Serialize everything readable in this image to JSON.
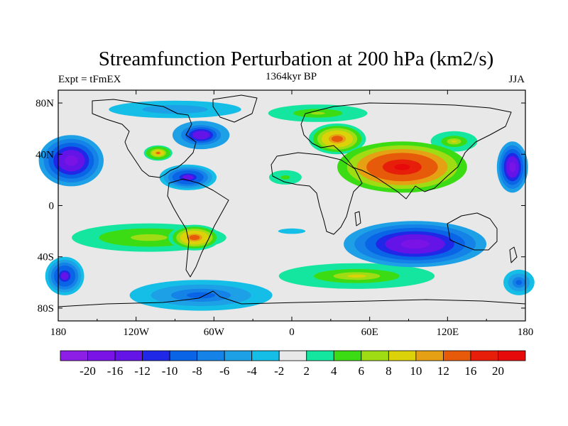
{
  "chart_data": {
    "type": "heatmap",
    "title": "Streamfunction Perturbation at 200 hPa (km2/s)",
    "left_string": "Expt = tFmEX",
    "center_string": "1364kyr BP",
    "right_string": "JJA",
    "xlabel": "",
    "ylabel": "",
    "x_range": [
      -180,
      180
    ],
    "y_range": [
      -90,
      90
    ],
    "x_ticks": [
      {
        "value": -180,
        "label": "180"
      },
      {
        "value": -120,
        "label": "120W"
      },
      {
        "value": -60,
        "label": "60W"
      },
      {
        "value": 0,
        "label": "0"
      },
      {
        "value": 60,
        "label": "60E"
      },
      {
        "value": 120,
        "label": "120E"
      },
      {
        "value": 180,
        "label": "180"
      }
    ],
    "y_ticks": [
      {
        "value": 80,
        "label": "80N"
      },
      {
        "value": 40,
        "label": "40N"
      },
      {
        "value": 0,
        "label": "0"
      },
      {
        "value": -40,
        "label": "40S"
      },
      {
        "value": -80,
        "label": "80S"
      }
    ],
    "colorbar": {
      "levels": [
        -20,
        -16,
        -12,
        -10,
        -8,
        -6,
        -4,
        -2,
        2,
        4,
        6,
        8,
        10,
        12,
        16,
        20
      ],
      "labels": [
        "-20",
        "-16",
        "-12",
        "-10",
        "-8",
        "-6",
        "-4",
        "-2",
        "2",
        "4",
        "6",
        "8",
        "10",
        "12",
        "16",
        "20"
      ],
      "colors": [
        "#8c1ee6",
        "#7a14e6",
        "#6414e6",
        "#1e28e6",
        "#0a64e6",
        "#1482e6",
        "#1ea0e6",
        "#14bee6",
        "#e8e8e8",
        "#14e6a0",
        "#3cdc14",
        "#a0dc14",
        "#dcd20a",
        "#e6a014",
        "#e65a0a",
        "#e61e0a",
        "#e60a0a"
      ]
    },
    "features": [
      {
        "name": "central-asia-high",
        "lon": 85,
        "lat": 30,
        "rx": 50,
        "ry": 20,
        "value": 22
      },
      {
        "name": "europe-high",
        "lon": 35,
        "lat": 52,
        "rx": 22,
        "ry": 12,
        "value": 14
      },
      {
        "name": "arctic-europe-positive",
        "lon": 20,
        "lat": 72,
        "rx": 45,
        "ry": 8,
        "value": 6
      },
      {
        "name": "east-asia-positive",
        "lon": 125,
        "lat": 50,
        "rx": 18,
        "ry": 8,
        "value": 8
      },
      {
        "name": "north-africa-positive",
        "lon": -5,
        "lat": 22,
        "rx": 18,
        "ry": 8,
        "value": 5
      },
      {
        "name": "north-pacific-low",
        "lon": -170,
        "lat": 35,
        "rx": 25,
        "ry": 20,
        "value": -18
      },
      {
        "name": "west-pacific-low",
        "lon": 170,
        "lat": 30,
        "rx": 12,
        "ry": 20,
        "value": -18
      },
      {
        "name": "north-atlantic-low",
        "lon": -70,
        "lat": 55,
        "rx": 22,
        "ry": 11,
        "value": -16
      },
      {
        "name": "central-america-low",
        "lon": -80,
        "lat": 22,
        "rx": 22,
        "ry": 10,
        "value": -14
      },
      {
        "name": "north-america-high",
        "lon": -103,
        "lat": 41,
        "rx": 11,
        "ry": 6,
        "value": 12
      },
      {
        "name": "arctic-low",
        "lon": -90,
        "lat": 75,
        "rx": 60,
        "ry": 8,
        "value": -6
      },
      {
        "name": "indian-ocean-australia-low",
        "lon": 95,
        "lat": -30,
        "rx": 55,
        "ry": 18,
        "value": -20
      },
      {
        "name": "south-pacific-high",
        "lon": -110,
        "lat": -25,
        "rx": 70,
        "ry": 13,
        "value": 7
      },
      {
        "name": "south-america-high",
        "lon": -75,
        "lat": -25,
        "rx": 20,
        "ry": 10,
        "value": 14
      },
      {
        "name": "south-atlantic-positive",
        "lon": 50,
        "lat": -55,
        "rx": 60,
        "ry": 10,
        "value": 8
      },
      {
        "name": "antarctic-low",
        "lon": -70,
        "lat": -70,
        "rx": 55,
        "ry": 12,
        "value": -10
      },
      {
        "name": "far-south-pacific-low",
        "lon": -175,
        "lat": -55,
        "rx": 15,
        "ry": 15,
        "value": -14
      },
      {
        "name": "far-south-pacific-low-east",
        "lon": 175,
        "lat": -60,
        "rx": 12,
        "ry": 10,
        "value": -10
      },
      {
        "name": "equatorial-atlantic-low",
        "lon": 0,
        "lat": -20,
        "rx": 25,
        "ry": 5,
        "value": -3
      }
    ]
  }
}
